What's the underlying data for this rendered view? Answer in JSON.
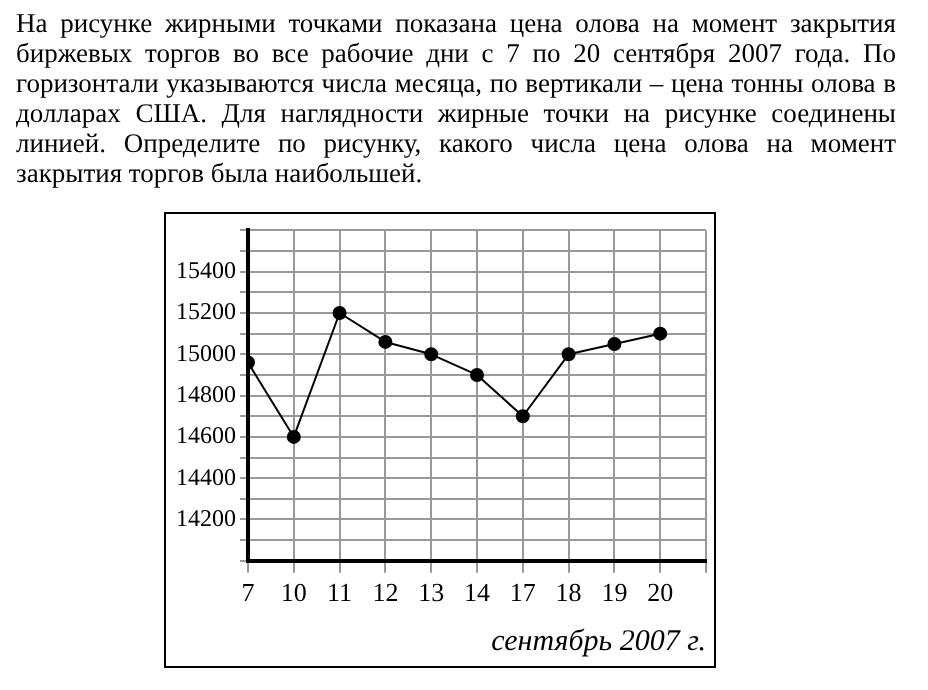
{
  "chart_data": {
    "type": "line",
    "title": "На рисунке жирными точками показана цена олова на момент закрытия биржевых торгов во все рабочие дни с 7 по 20 сентября 2007 года. По горизонтали указываются числа месяца, по вертикали – цена тонны олова в долларах США. Для наглядности жирные точки на рисунке соединены линией. Определите по рисунку, какого числа цена олова на момент закрытия торгов была наибольшей.",
    "xlabel": "сентябрь 2007 г.",
    "categories": [
      "7",
      "10",
      "11",
      "12",
      "13",
      "14",
      "17",
      "18",
      "19",
      "20"
    ],
    "series": [
      {
        "color": "#000000",
        "values": [
          14960,
          14600,
          15200,
          15060,
          15000,
          14900,
          14700,
          15000,
          15050,
          15100
        ]
      }
    ],
    "ylim": [
      14000,
      15600
    ],
    "yticks": [
      {
        "value": 14000,
        "label": null
      },
      {
        "value": 14100,
        "label": null
      },
      14200,
      {
        "value": 14300,
        "label": null
      },
      14400,
      {
        "value": 14500,
        "label": null
      },
      14600,
      {
        "value": 14700,
        "label": null
      },
      14800,
      {
        "value": 14900,
        "label": null
      },
      15000,
      {
        "value": 15100,
        "label": null
      },
      15200,
      {
        "value": 15300,
        "label": null
      },
      15400,
      {
        "value": 15500,
        "label": null
      },
      {
        "value": 15600,
        "label": null
      }
    ],
    "grid": true,
    "legend": false,
    "marker": "circle",
    "line_style": "solid"
  }
}
